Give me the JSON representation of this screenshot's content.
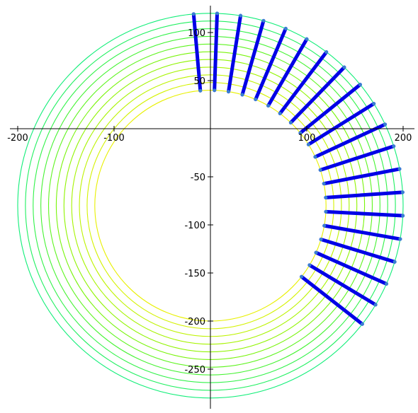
{
  "chart_data": {
    "type": "contour+flowlines",
    "xlim": [
      -200,
      200
    ],
    "ylim": [
      -280,
      120
    ],
    "x_ticks": [
      -200,
      -100,
      100,
      200
    ],
    "y_ticks": [
      100,
      50,
      -50,
      -100,
      -150,
      -200,
      -250
    ],
    "x_tick_labels": [
      "-200",
      "-100",
      "100",
      "200"
    ],
    "y_tick_labels": [
      "100",
      "50",
      "-50",
      "-100",
      "-150",
      "-200",
      "-250"
    ],
    "contours": {
      "center": [
        0,
        -80
      ],
      "radii": [
        120,
        128,
        136,
        144,
        152,
        160,
        168,
        176,
        184,
        192,
        200
      ],
      "colors": [
        "#e8f000",
        "#d4f200",
        "#bef300",
        "#a6f400",
        "#8ff400",
        "#78f40a",
        "#5ef41e",
        "#45f332",
        "#30f248",
        "#20f060",
        "#10ee78"
      ]
    },
    "flow_lines": {
      "count": 20,
      "inner_radius": 120,
      "outer_radius": 200,
      "angles_deg": [
        95,
        88,
        81,
        74,
        67,
        60,
        53,
        46,
        39,
        32,
        25,
        18,
        11,
        4,
        -3,
        -10,
        -17,
        -24,
        -31,
        -38
      ],
      "outer_extent": [
        200,
        200,
        200,
        200,
        200,
        200,
        200,
        200,
        200,
        200,
        200,
        200,
        200,
        200,
        200,
        200,
        200,
        200,
        200,
        200
      ],
      "colors": {
        "line": "#0000e6",
        "point": "#3a7fd0"
      }
    }
  }
}
